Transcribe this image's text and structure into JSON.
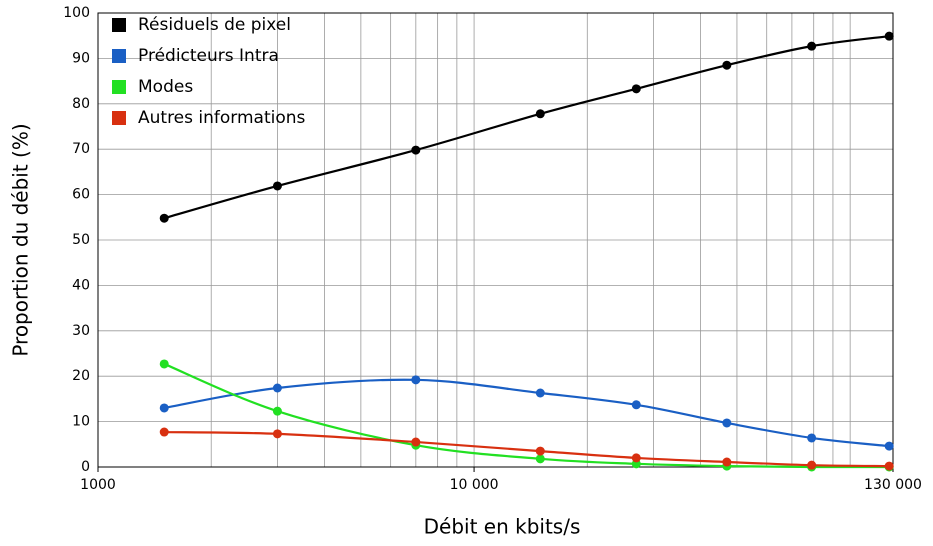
{
  "chart_data": {
    "type": "line",
    "xlabel": "Débit en kbits/s",
    "ylabel": "Proportion du débit (%)",
    "x": [
      1500,
      3000,
      7000,
      15000,
      27000,
      47000,
      79000,
      127000
    ],
    "series": [
      {
        "name": "Résiduels de pixel",
        "color": "#000000",
        "values": [
          54.8,
          61.9,
          69.8,
          77.8,
          83.3,
          88.5,
          92.7,
          94.9
        ]
      },
      {
        "name": "Prédicteurs Intra",
        "color": "#1a5fc4",
        "values": [
          13,
          17.4,
          19.2,
          16.3,
          13.7,
          9.7,
          6.4,
          4.6
        ]
      },
      {
        "name": "Modes",
        "color": "#22e022",
        "values": [
          22.7,
          12.3,
          4.8,
          1.8,
          0.7,
          0.2,
          0,
          0
        ]
      },
      {
        "name": "Autres informations",
        "color": "#d83010",
        "values": [
          7.7,
          7.3,
          5.5,
          3.5,
          2,
          1.1,
          0.4,
          0.2
        ]
      }
    ],
    "xscale": "log",
    "xlim": [
      1000,
      130000
    ],
    "xticks": [
      1000,
      {
        "value": 10000,
        "label": "10 000"
      },
      {
        "value": 130000,
        "label": "130 000"
      }
    ],
    "xgrid": [
      2000,
      3000,
      4000,
      5000,
      6000,
      7000,
      8000,
      9000,
      10000,
      20000,
      30000,
      40000,
      50000,
      60000,
      70000,
      80000,
      90000,
      100000
    ],
    "ylim": [
      0,
      100
    ],
    "yticks": [
      0,
      10,
      20,
      30,
      40,
      50,
      60,
      70,
      80,
      90,
      100
    ],
    "grid": true,
    "legend": "upper left"
  }
}
